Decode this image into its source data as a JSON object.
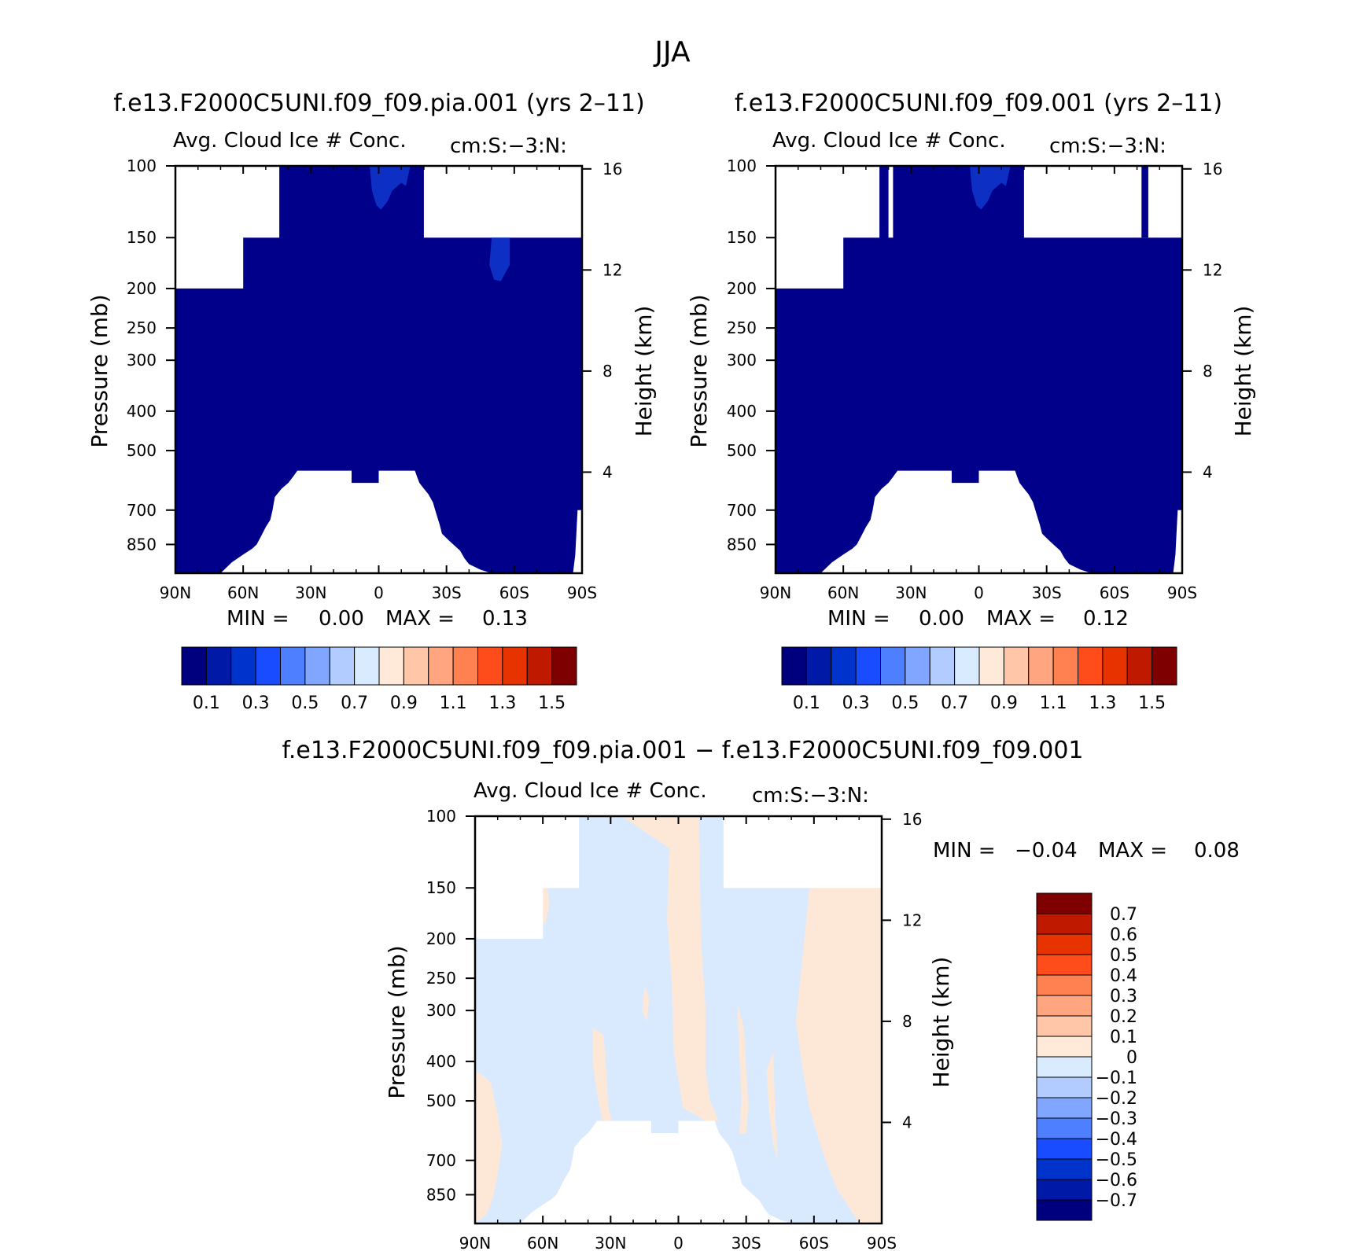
{
  "title": "JJA",
  "colors": {
    "abs_scale": [
      "#00007f",
      "#0019a6",
      "#0033cc",
      "#1a4cff",
      "#4d7fff",
      "#80a6ff",
      "#b3ccff",
      "#d9ebff",
      "#ffe9d9",
      "#ffc6a8",
      "#ffa680",
      "#ff8050",
      "#ff4c1a",
      "#e63300",
      "#bf1900",
      "#7f0000"
    ],
    "diff_scale": [
      "#00007f",
      "#0019a6",
      "#0033cc",
      "#1a4cff",
      "#4d7fff",
      "#80a6ff",
      "#b3ccff",
      "#d9ebff",
      "#ffe9d9",
      "#ffc6a8",
      "#ffa680",
      "#ff8050",
      "#ff4c1a",
      "#e63300",
      "#bf1900",
      "#7f0000"
    ],
    "field_main": "#00008b",
    "field_light": "#0e2fc4",
    "diff_neg": "#d9eaff",
    "diff_pos": "#fde8d8"
  },
  "chart_data": [
    {
      "type": "heatmap",
      "panel": "top-left",
      "case": "f.e13.F2000C5UNI.f09_f09.pia.001 (yrs 2–11)",
      "variable": "Avg. Cloud Ice # Conc.",
      "units": "cm:S:−3:N:",
      "xlabel": "",
      "ylabel": "Pressure (mb)",
      "ylabel_right": "Height (km)",
      "x_ticks": [
        "90N",
        "60N",
        "30N",
        "0",
        "30S",
        "60S",
        "90S"
      ],
      "y_ticks": [
        "100",
        "150",
        "200",
        "250",
        "300",
        "400",
        "500",
        "700",
        "850"
      ],
      "y_ticks_right": [
        "16",
        "12",
        "8",
        "4"
      ],
      "xlim": [
        90,
        -90
      ],
      "ylim": [
        100,
        1000
      ],
      "stats": {
        "min_label": "MIN =",
        "min": "0.00",
        "max_label": "MAX =",
        "max": "0.13"
      },
      "colorbar_labels": [
        "0.1",
        "0.3",
        "0.5",
        "0.7",
        "0.9",
        "1.1",
        "1.3",
        "1.5"
      ]
    },
    {
      "type": "heatmap",
      "panel": "top-right",
      "case": "f.e13.F2000C5UNI.f09_f09.001 (yrs 2–11)",
      "variable": "Avg. Cloud Ice # Conc.",
      "units": "cm:S:−3:N:",
      "xlabel": "",
      "ylabel": "Pressure (mb)",
      "ylabel_right": "Height (km)",
      "x_ticks": [
        "90N",
        "60N",
        "30N",
        "0",
        "30S",
        "60S",
        "90S"
      ],
      "y_ticks": [
        "100",
        "150",
        "200",
        "250",
        "300",
        "400",
        "500",
        "700",
        "850"
      ],
      "y_ticks_right": [
        "16",
        "12",
        "8",
        "4"
      ],
      "xlim": [
        90,
        -90
      ],
      "ylim": [
        100,
        1000
      ],
      "stats": {
        "min_label": "MIN =",
        "min": "0.00",
        "max_label": "MAX =",
        "max": "0.12"
      },
      "colorbar_labels": [
        "0.1",
        "0.3",
        "0.5",
        "0.7",
        "0.9",
        "1.1",
        "1.3",
        "1.5"
      ]
    },
    {
      "type": "heatmap",
      "panel": "bottom",
      "case": "f.e13.F2000C5UNI.f09_f09.pia.001 − f.e13.F2000C5UNI.f09_f09.001",
      "variable": "Avg. Cloud Ice # Conc.",
      "units": "cm:S:−3:N:",
      "xlabel": "",
      "ylabel": "Pressure (mb)",
      "ylabel_right": "Height (km)",
      "x_ticks": [
        "90N",
        "60N",
        "30N",
        "0",
        "30S",
        "60S",
        "90S"
      ],
      "y_ticks": [
        "100",
        "150",
        "200",
        "250",
        "300",
        "400",
        "500",
        "700",
        "850"
      ],
      "y_ticks_right": [
        "16",
        "12",
        "8",
        "4"
      ],
      "xlim": [
        90,
        -90
      ],
      "ylim": [
        100,
        1000
      ],
      "stats": {
        "min_label": "MIN =",
        "min": "−0.04",
        "max_label": "MAX =",
        "max": "0.08"
      },
      "colorbar_labels": [
        "0.7",
        "0.6",
        "0.5",
        "0.4",
        "0.3",
        "0.2",
        "0.1",
        "0",
        "−0.1",
        "−0.2",
        "−0.3",
        "−0.4",
        "−0.5",
        "−0.6",
        "−0.7"
      ]
    }
  ]
}
